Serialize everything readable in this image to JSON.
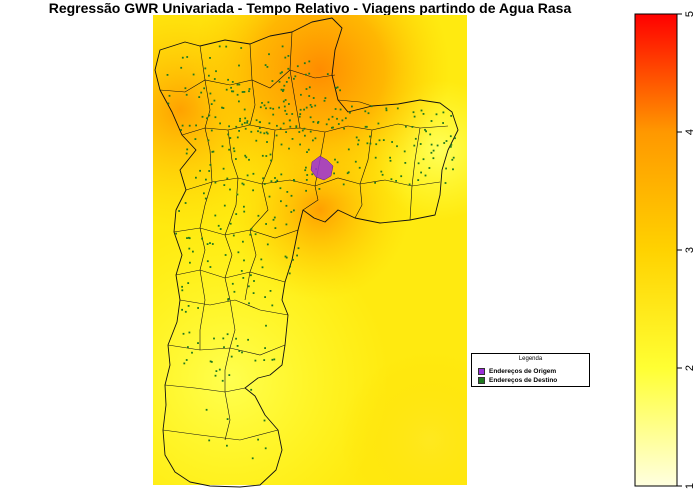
{
  "title": "Regressão GWR Univariada - Tempo Relativo - Viagens partindo de Agua Rasa",
  "legend": {
    "title": "Legenda",
    "items": [
      {
        "label": "Endereços de Origem",
        "color": "#9b30d9"
      },
      {
        "label": "Endereços de Destino",
        "color": "#1f7a1f"
      }
    ]
  },
  "color_scale": {
    "min": 1,
    "max": 5,
    "ticks": [
      "1",
      "2",
      "3",
      "4",
      "5"
    ],
    "colors": [
      "#ffffe0",
      "#ffff33",
      "#ffd200",
      "#ff9800",
      "#ff0000"
    ]
  }
}
